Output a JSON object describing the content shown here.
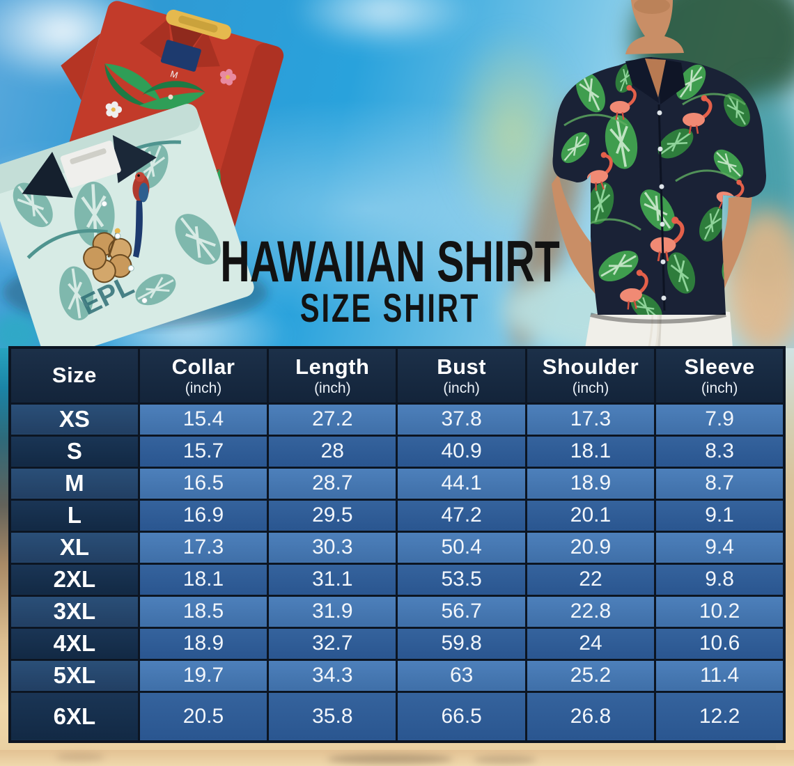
{
  "title": {
    "line1": "HAWAIIAN SHIRT",
    "line2": "SIZE SHIRT"
  },
  "size_chart": {
    "columns": [
      {
        "label": "Size",
        "unit": ""
      },
      {
        "label": "Collar",
        "unit": "(inch)"
      },
      {
        "label": "Length",
        "unit": "(inch)"
      },
      {
        "label": "Bust",
        "unit": "(inch)"
      },
      {
        "label": "Shoulder",
        "unit": "(inch)"
      },
      {
        "label": "Sleeve",
        "unit": "(inch)"
      }
    ],
    "rows": [
      {
        "size": "XS",
        "values": [
          "15.4",
          "27.2",
          "37.8",
          "17.3",
          "7.9"
        ]
      },
      {
        "size": "S",
        "values": [
          "15.7",
          "28",
          "40.9",
          "18.1",
          "8.3"
        ]
      },
      {
        "size": "M",
        "values": [
          "16.5",
          "28.7",
          "44.1",
          "18.9",
          "8.7"
        ]
      },
      {
        "size": "L",
        "values": [
          "16.9",
          "29.5",
          "47.2",
          "20.1",
          "9.1"
        ]
      },
      {
        "size": "XL",
        "values": [
          "17.3",
          "30.3",
          "50.4",
          "20.9",
          "9.4"
        ]
      },
      {
        "size": "2XL",
        "values": [
          "18.1",
          "31.1",
          "53.5",
          "22",
          "9.8"
        ]
      },
      {
        "size": "3XL",
        "values": [
          "18.5",
          "31.9",
          "56.7",
          "22.8",
          "10.2"
        ]
      },
      {
        "size": "4XL",
        "values": [
          "18.9",
          "32.7",
          "59.8",
          "24",
          "10.6"
        ]
      },
      {
        "size": "5XL",
        "values": [
          "19.7",
          "34.3",
          "63",
          "25.2",
          "11.4"
        ]
      },
      {
        "size": "6XL",
        "values": [
          "20.5",
          "35.8",
          "66.5",
          "26.8",
          "12.2"
        ]
      }
    ]
  },
  "chart_data": {
    "type": "table",
    "title": "HAWAIIAN SHIRT SIZE SHIRT",
    "columns": [
      "Size",
      "Collar (inch)",
      "Length (inch)",
      "Bust (inch)",
      "Shoulder (inch)",
      "Sleeve (inch)"
    ],
    "rows": [
      [
        "XS",
        15.4,
        27.2,
        37.8,
        17.3,
        7.9
      ],
      [
        "S",
        15.7,
        28,
        40.9,
        18.1,
        8.3
      ],
      [
        "M",
        16.5,
        28.7,
        44.1,
        18.9,
        8.7
      ],
      [
        "L",
        16.9,
        29.5,
        47.2,
        20.1,
        9.1
      ],
      [
        "XL",
        17.3,
        30.3,
        50.4,
        20.9,
        9.4
      ],
      [
        "2XL",
        18.1,
        31.1,
        53.5,
        22,
        9.8
      ],
      [
        "3XL",
        18.5,
        31.9,
        56.7,
        22.8,
        10.2
      ],
      [
        "4XL",
        18.9,
        32.7,
        59.8,
        24,
        10.6
      ],
      [
        "5XL",
        19.7,
        34.3,
        63,
        25.2,
        11.4
      ],
      [
        "6XL",
        20.5,
        35.8,
        66.5,
        26.8,
        12.2
      ]
    ]
  },
  "decor": {
    "teal_shirt_print": "EPL",
    "red_shirt_tag": "M"
  },
  "colors": {
    "table_header_bg": "#16283f",
    "table_row_light": "#4478b4",
    "table_row_dark": "#2e5c94",
    "size_col_light": "#26496f",
    "size_col_dark": "#142f4f",
    "grid_line": "#0c1522",
    "title_text": "#121212",
    "sky_blue": "#2b9fd8",
    "sand": "#ecd3a6",
    "model_shirt_navy": "#1a2236",
    "leaf_green": "#3f9d4e",
    "flamingo_pink": "#ef8a7a",
    "folded_shirt_red": "#c23b2a",
    "folded_shirt_teal": "#d7ebe5"
  }
}
